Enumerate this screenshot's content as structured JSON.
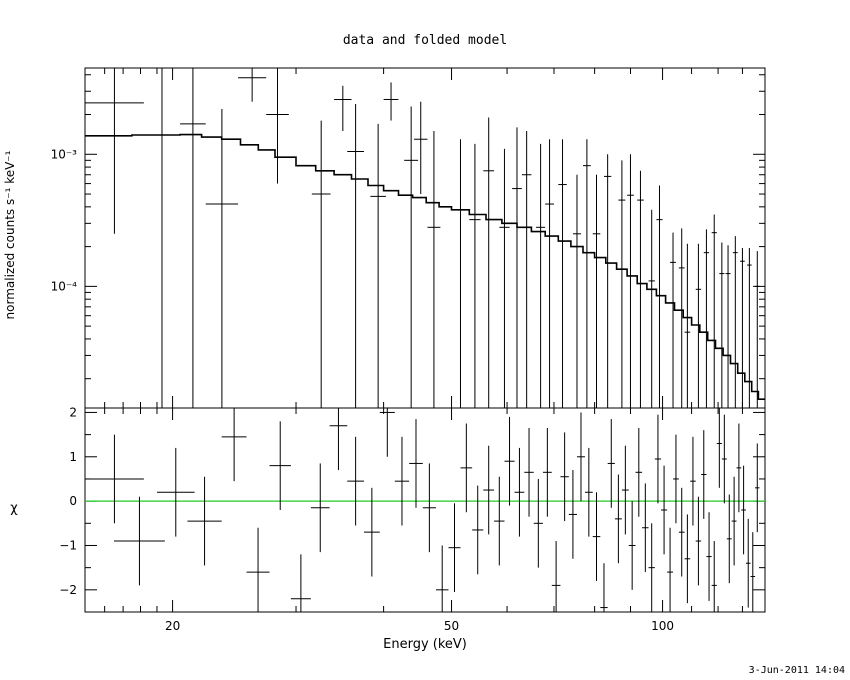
{
  "timestamp": "3-Jun-2011 14:04",
  "chart_data": [
    {
      "type": "line",
      "panel": "spectrum",
      "title": "data and folded model",
      "xlabel": "",
      "ylabel": "normalized counts s⁻¹ keV⁻¹",
      "x_scale": "log",
      "y_scale": "log",
      "xlim": [
        15,
        140
      ],
      "ylim": [
        1.2e-05,
        0.0045
      ],
      "y_ticks": [
        {
          "label": "10⁻³",
          "value": 0.001
        },
        {
          "label": "10⁻⁴",
          "value": 0.0001
        }
      ],
      "data": [
        {
          "xl": 15.0,
          "xh": 18.2,
          "y": 0.00245,
          "ylo": 0.00025,
          "yhi": 0.0045
        },
        {
          "xl": 18.2,
          "xh": 20.5,
          "y": 0.0014,
          "ylo": 1.2e-05,
          "yhi": 0.0045
        },
        {
          "xl": 20.5,
          "xh": 22.3,
          "y": 0.0017,
          "ylo": 1.2e-05,
          "yhi": 0.0045
        },
        {
          "xl": 22.3,
          "xh": 24.8,
          "y": 0.00042,
          "ylo": 1.2e-05,
          "yhi": 0.0022
        },
        {
          "xl": 24.8,
          "xh": 27.2,
          "y": 0.0038,
          "ylo": 0.0025,
          "yhi": 0.0045
        },
        {
          "xl": 27.2,
          "xh": 29.3,
          "y": 0.002,
          "ylo": 0.0006,
          "yhi": 0.0045
        },
        {
          "xl": 31.6,
          "xh": 33.6,
          "y": 0.0005,
          "ylo": 1.2e-05,
          "yhi": 0.0018
        },
        {
          "xl": 34.0,
          "xh": 36.0,
          "y": 0.0026,
          "ylo": 0.0015,
          "yhi": 0.0033
        },
        {
          "xl": 35.5,
          "xh": 37.5,
          "y": 0.00105,
          "ylo": 1.2e-05,
          "yhi": 0.0024
        },
        {
          "xl": 38.3,
          "xh": 40.3,
          "y": 0.00048,
          "ylo": 1.2e-05,
          "yhi": 0.0017
        },
        {
          "xl": 40.0,
          "xh": 42.0,
          "y": 0.0026,
          "ylo": 0.0018,
          "yhi": 0.0035
        },
        {
          "xl": 42.8,
          "xh": 44.8,
          "y": 0.0009,
          "ylo": 1.2e-05,
          "yhi": 0.0023
        },
        {
          "xl": 44.2,
          "xh": 46.2,
          "y": 0.0013,
          "ylo": 0.0005,
          "yhi": 0.0025
        },
        {
          "xl": 46.2,
          "xh": 48.2,
          "y": 0.00028,
          "ylo": 1.2e-05,
          "yhi": 0.0015
        },
        {
          "xl": 50.5,
          "xh": 52.5,
          "y": 0.00038,
          "ylo": 1.2e-05,
          "yhi": 0.0013
        },
        {
          "xl": 53.0,
          "xh": 55.0,
          "y": 0.00032,
          "ylo": 1.2e-05,
          "yhi": 0.0012
        },
        {
          "xl": 55.5,
          "xh": 57.5,
          "y": 0.00075,
          "ylo": 1.2e-05,
          "yhi": 0.0019
        },
        {
          "xl": 58.5,
          "xh": 60.5,
          "y": 0.00028,
          "ylo": 1.2e-05,
          "yhi": 0.0011
        },
        {
          "xl": 61.0,
          "xh": 63.0,
          "y": 0.00055,
          "ylo": 1.2e-05,
          "yhi": 0.0016
        },
        {
          "xl": 63.0,
          "xh": 65.0,
          "y": 0.0007,
          "ylo": 1.2e-05,
          "yhi": 0.0015
        },
        {
          "xl": 66.0,
          "xh": 68.0,
          "y": 0.00028,
          "ylo": 1.2e-05,
          "yhi": 0.0012
        },
        {
          "xl": 68.0,
          "xh": 70.0,
          "y": 0.00042,
          "ylo": 1.2e-05,
          "yhi": 0.0013
        },
        {
          "xl": 71.0,
          "xh": 73.0,
          "y": 0.00059,
          "ylo": 1.2e-05,
          "yhi": 0.0013
        },
        {
          "xl": 74.5,
          "xh": 76.5,
          "y": 0.00025,
          "ylo": 1.2e-05,
          "yhi": 0.0007
        },
        {
          "xl": 77.0,
          "xh": 79.0,
          "y": 0.00082,
          "ylo": 1.2e-05,
          "yhi": 0.0013
        },
        {
          "xl": 79.5,
          "xh": 81.5,
          "y": 0.00025,
          "ylo": 1.2e-05,
          "yhi": 0.0007
        },
        {
          "xl": 82.5,
          "xh": 84.5,
          "y": 0.00068,
          "ylo": 1.2e-05,
          "yhi": 0.001
        },
        {
          "xl": 86.5,
          "xh": 88.5,
          "y": 0.00045,
          "ylo": 1.2e-05,
          "yhi": 0.0009
        },
        {
          "xl": 89.0,
          "xh": 91.0,
          "y": 0.00049,
          "ylo": 1.2e-05,
          "yhi": 0.001
        },
        {
          "xl": 92.0,
          "xh": 94.0,
          "y": 0.00045,
          "ylo": 1.2e-05,
          "yhi": 0.00075
        },
        {
          "xl": 95.5,
          "xh": 97.5,
          "y": 0.00011,
          "ylo": 1.2e-05,
          "yhi": 0.00038
        },
        {
          "xl": 98.0,
          "xh": 100.0,
          "y": 0.00032,
          "ylo": 1.2e-05,
          "yhi": 0.00058
        },
        {
          "xl": 102.5,
          "xh": 104.5,
          "y": 0.000152,
          "ylo": 1.2e-05,
          "yhi": 0.000255
        },
        {
          "xl": 105.5,
          "xh": 107.5,
          "y": 0.000138,
          "ylo": 1.2e-05,
          "yhi": 0.000275
        },
        {
          "xl": 107.5,
          "xh": 109.5,
          "y": 4.5e-05,
          "ylo": 1.2e-05,
          "yhi": 0.00021
        },
        {
          "xl": 111.5,
          "xh": 113.5,
          "y": 9.5e-05,
          "ylo": 1.2e-05,
          "yhi": 0.00021
        },
        {
          "xl": 114.5,
          "xh": 116.5,
          "y": 0.00018,
          "ylo": 1.2e-05,
          "yhi": 0.00027
        },
        {
          "xl": 117.5,
          "xh": 119.5,
          "y": 0.000255,
          "ylo": 1.2e-05,
          "yhi": 0.00035
        },
        {
          "xl": 120.5,
          "xh": 122.5,
          "y": 0.000125,
          "ylo": 1.2e-05,
          "yhi": 0.000215
        },
        {
          "xl": 123.0,
          "xh": 125.0,
          "y": 0.000125,
          "ylo": 1.2e-05,
          "yhi": 0.000205
        },
        {
          "xl": 126.0,
          "xh": 128.0,
          "y": 0.00018,
          "ylo": 1.2e-05,
          "yhi": 0.00024
        },
        {
          "xl": 129.0,
          "xh": 131.0,
          "y": 0.000155,
          "ylo": 1.2e-05,
          "yhi": 0.000195
        },
        {
          "xl": 132.0,
          "xh": 134.0,
          "y": 0.000145,
          "ylo": 1.2e-05,
          "yhi": 0.000195
        },
        {
          "xl": 135.5,
          "xh": 137.5,
          "y": 0.0001,
          "ylo": 1.2e-05,
          "yhi": 0.000185
        }
      ],
      "model": [
        [
          15.0,
          0.00138
        ],
        [
          17.5,
          0.0014
        ],
        [
          20.5,
          0.00141
        ],
        [
          22.0,
          0.00135
        ],
        [
          23.5,
          0.0013
        ],
        [
          25.0,
          0.00118
        ],
        [
          26.5,
          0.00108
        ],
        [
          28.0,
          0.00095
        ],
        [
          30.0,
          0.00082
        ],
        [
          32.0,
          0.00075
        ],
        [
          34.0,
          0.0007
        ],
        [
          36.0,
          0.00065
        ],
        [
          38.0,
          0.00058
        ],
        [
          40.0,
          0.00053
        ],
        [
          42.0,
          0.00049
        ],
        [
          44.0,
          0.00047
        ],
        [
          46.0,
          0.00043
        ],
        [
          48.0,
          0.0004
        ],
        [
          50.0,
          0.00038
        ],
        [
          53.0,
          0.00035
        ],
        [
          56.0,
          0.00032
        ],
        [
          59.0,
          0.0003
        ],
        [
          62.0,
          0.00028
        ],
        [
          65.0,
          0.00026
        ],
        [
          68.0,
          0.00024
        ],
        [
          71.0,
          0.00022
        ],
        [
          74.0,
          0.0002
        ],
        [
          77.0,
          0.00018
        ],
        [
          80.0,
          0.000165
        ],
        [
          83.0,
          0.00015
        ],
        [
          86.0,
          0.000135
        ],
        [
          89.0,
          0.00012
        ],
        [
          92.0,
          0.000105
        ],
        [
          95.0,
          9.5e-05
        ],
        [
          98.0,
          8.5e-05
        ],
        [
          101.0,
          7.5e-05
        ],
        [
          104.0,
          6.6e-05
        ],
        [
          107.0,
          5.8e-05
        ],
        [
          110.0,
          5.1e-05
        ],
        [
          113.0,
          4.5e-05
        ],
        [
          116.0,
          3.9e-05
        ],
        [
          119.0,
          3.4e-05
        ],
        [
          122.0,
          3e-05
        ],
        [
          125.0,
          2.6e-05
        ],
        [
          128.0,
          2.2e-05
        ],
        [
          131.0,
          1.9e-05
        ],
        [
          134.0,
          1.6e-05
        ],
        [
          137.0,
          1.4e-05
        ],
        [
          140.0,
          1.25e-05
        ]
      ]
    },
    {
      "type": "scatter",
      "panel": "residuals",
      "xlabel": "Energy (keV)",
      "ylabel": "χ",
      "x_scale": "log",
      "xlim": [
        15,
        140
      ],
      "ylim": [
        -2.5,
        2.1
      ],
      "x_ticks": [
        {
          "label": "20",
          "value": 20
        },
        {
          "label": "50",
          "value": 50
        },
        {
          "label": "100",
          "value": 100
        }
      ],
      "y_ticks": [
        {
          "label": "2",
          "value": 2
        },
        {
          "label": "1",
          "value": 1
        },
        {
          "label": "0",
          "value": 0
        },
        {
          "label": "−1",
          "value": -1
        },
        {
          "label": "−2",
          "value": -2
        }
      ],
      "zero_line_color": "#22cc22",
      "data": [
        {
          "xl": 15.0,
          "xh": 18.2,
          "y": 0.5,
          "ylo": -0.5,
          "yhi": 1.5
        },
        {
          "xl": 16.5,
          "xh": 19.5,
          "y": -0.9,
          "ylo": -1.9,
          "yhi": 0.1
        },
        {
          "xl": 19.0,
          "xh": 21.5,
          "y": 0.2,
          "ylo": -0.8,
          "yhi": 1.2
        },
        {
          "xl": 21.0,
          "xh": 23.5,
          "y": -0.45,
          "ylo": -1.45,
          "yhi": 0.55
        },
        {
          "xl": 23.5,
          "xh": 25.5,
          "y": 1.45,
          "ylo": 0.45,
          "yhi": 2.1
        },
        {
          "xl": 25.5,
          "xh": 27.5,
          "y": -1.6,
          "ylo": -2.5,
          "yhi": -0.6
        },
        {
          "xl": 27.5,
          "xh": 29.5,
          "y": 0.8,
          "ylo": -0.2,
          "yhi": 1.8
        },
        {
          "xl": 29.5,
          "xh": 31.5,
          "y": -2.2,
          "ylo": -2.5,
          "yhi": -1.2
        },
        {
          "xl": 31.5,
          "xh": 33.5,
          "y": -0.15,
          "ylo": -1.15,
          "yhi": 0.85
        },
        {
          "xl": 33.5,
          "xh": 35.5,
          "y": 1.7,
          "ylo": 0.7,
          "yhi": 2.1
        },
        {
          "xl": 35.5,
          "xh": 37.5,
          "y": 0.45,
          "ylo": -0.55,
          "yhi": 1.45
        },
        {
          "xl": 37.5,
          "xh": 39.5,
          "y": -0.7,
          "ylo": -1.7,
          "yhi": 0.3
        },
        {
          "xl": 39.5,
          "xh": 41.5,
          "y": 2.0,
          "ylo": 1.0,
          "yhi": 2.1
        },
        {
          "xl": 41.5,
          "xh": 43.5,
          "y": 0.45,
          "ylo": -0.55,
          "yhi": 1.45
        },
        {
          "xl": 43.5,
          "xh": 45.5,
          "y": 0.85,
          "ylo": -0.15,
          "yhi": 1.85
        },
        {
          "xl": 45.5,
          "xh": 47.5,
          "y": -0.15,
          "ylo": -1.15,
          "yhi": 0.85
        },
        {
          "xl": 47.5,
          "xh": 49.5,
          "y": -2.0,
          "ylo": -2.5,
          "yhi": -1.0
        },
        {
          "xl": 49.5,
          "xh": 51.5,
          "y": -1.05,
          "ylo": -2.05,
          "yhi": -0.05
        },
        {
          "xl": 51.5,
          "xh": 53.5,
          "y": 0.75,
          "ylo": -0.25,
          "yhi": 1.75
        },
        {
          "xl": 53.5,
          "xh": 55.5,
          "y": -0.65,
          "ylo": -1.65,
          "yhi": 0.35
        },
        {
          "xl": 55.5,
          "xh": 57.5,
          "y": 0.25,
          "ylo": -0.75,
          "yhi": 1.25
        },
        {
          "xl": 57.5,
          "xh": 59.5,
          "y": -0.45,
          "ylo": -1.45,
          "yhi": 0.55
        },
        {
          "xl": 59.5,
          "xh": 61.5,
          "y": 0.9,
          "ylo": -0.1,
          "yhi": 1.9
        },
        {
          "xl": 61.5,
          "xh": 63.5,
          "y": 0.2,
          "ylo": -0.8,
          "yhi": 1.2
        },
        {
          "xl": 63.5,
          "xh": 65.5,
          "y": 0.65,
          "ylo": -0.35,
          "yhi": 1.65
        },
        {
          "xl": 65.5,
          "xh": 67.5,
          "y": -0.5,
          "ylo": -1.5,
          "yhi": 0.5
        },
        {
          "xl": 67.5,
          "xh": 69.5,
          "y": 0.65,
          "ylo": -0.35,
          "yhi": 1.65
        },
        {
          "xl": 69.5,
          "xh": 71.5,
          "y": -1.9,
          "ylo": -2.5,
          "yhi": -0.9
        },
        {
          "xl": 71.5,
          "xh": 73.5,
          "y": 0.55,
          "ylo": -0.45,
          "yhi": 1.55
        },
        {
          "xl": 73.5,
          "xh": 75.5,
          "y": -0.3,
          "ylo": -1.3,
          "yhi": 0.7
        },
        {
          "xl": 75.5,
          "xh": 77.5,
          "y": 1.0,
          "ylo": 0.0,
          "yhi": 2.0
        },
        {
          "xl": 77.5,
          "xh": 79.5,
          "y": 0.2,
          "ylo": -0.8,
          "yhi": 1.2
        },
        {
          "xl": 79.5,
          "xh": 81.5,
          "y": -0.8,
          "ylo": -1.8,
          "yhi": 0.2
        },
        {
          "xl": 81.5,
          "xh": 83.5,
          "y": -2.4,
          "ylo": -2.5,
          "yhi": -1.4
        },
        {
          "xl": 83.5,
          "xh": 85.5,
          "y": 0.85,
          "ylo": -0.15,
          "yhi": 1.85
        },
        {
          "xl": 85.5,
          "xh": 87.5,
          "y": -0.4,
          "ylo": -1.4,
          "yhi": 0.6
        },
        {
          "xl": 87.5,
          "xh": 89.5,
          "y": 0.25,
          "ylo": -0.75,
          "yhi": 1.25
        },
        {
          "xl": 89.5,
          "xh": 91.5,
          "y": -1.0,
          "ylo": -2.0,
          "yhi": 0.0
        },
        {
          "xl": 91.5,
          "xh": 93.5,
          "y": 0.65,
          "ylo": -0.35,
          "yhi": 1.65
        },
        {
          "xl": 93.5,
          "xh": 95.5,
          "y": -0.6,
          "ylo": -1.6,
          "yhi": 0.4
        },
        {
          "xl": 95.5,
          "xh": 97.5,
          "y": -1.5,
          "ylo": -2.5,
          "yhi": -0.5
        },
        {
          "xl": 97.5,
          "xh": 99.5,
          "y": 0.95,
          "ylo": -0.05,
          "yhi": 1.95
        },
        {
          "xl": 99.5,
          "xh": 101.5,
          "y": -0.2,
          "ylo": -1.2,
          "yhi": 0.8
        },
        {
          "xl": 101.5,
          "xh": 103.5,
          "y": -1.6,
          "ylo": -2.5,
          "yhi": -0.6
        },
        {
          "xl": 103.5,
          "xh": 105.5,
          "y": 0.5,
          "ylo": -0.5,
          "yhi": 1.5
        },
        {
          "xl": 105.5,
          "xh": 107.5,
          "y": -0.7,
          "ylo": -1.7,
          "yhi": 0.3
        },
        {
          "xl": 107.5,
          "xh": 109.5,
          "y": -1.3,
          "ylo": -2.3,
          "yhi": -0.3
        },
        {
          "xl": 109.5,
          "xh": 111.5,
          "y": 0.45,
          "ylo": -0.55,
          "yhi": 1.45
        },
        {
          "xl": 111.5,
          "xh": 113.5,
          "y": -0.9,
          "ylo": -1.9,
          "yhi": 0.1
        },
        {
          "xl": 113.5,
          "xh": 115.5,
          "y": 0.6,
          "ylo": -0.4,
          "yhi": 1.6
        },
        {
          "xl": 115.5,
          "xh": 117.5,
          "y": -1.25,
          "ylo": -2.25,
          "yhi": -0.25
        },
        {
          "xl": 117.5,
          "xh": 119.5,
          "y": -1.9,
          "ylo": -2.5,
          "yhi": -0.9
        },
        {
          "xl": 119.5,
          "xh": 121.5,
          "y": 1.3,
          "ylo": 0.3,
          "yhi": 2.1
        },
        {
          "xl": 121.5,
          "xh": 123.5,
          "y": 0.95,
          "ylo": -0.05,
          "yhi": 1.95
        },
        {
          "xl": 123.5,
          "xh": 125.5,
          "y": -0.85,
          "ylo": -1.85,
          "yhi": 0.15
        },
        {
          "xl": 125.5,
          "xh": 127.5,
          "y": -0.45,
          "ylo": -1.45,
          "yhi": 0.55
        },
        {
          "xl": 127.5,
          "xh": 129.5,
          "y": 0.75,
          "ylo": -0.25,
          "yhi": 1.75
        },
        {
          "xl": 129.5,
          "xh": 131.5,
          "y": -0.2,
          "ylo": -1.2,
          "yhi": 0.8
        },
        {
          "xl": 131.5,
          "xh": 133.5,
          "y": -1.4,
          "ylo": -2.4,
          "yhi": -0.4
        },
        {
          "xl": 133.5,
          "xh": 135.5,
          "y": -1.7,
          "ylo": -2.5,
          "yhi": -0.7
        },
        {
          "xl": 135.5,
          "xh": 137.5,
          "y": 0.3,
          "ylo": -0.7,
          "yhi": 1.3
        }
      ]
    }
  ]
}
